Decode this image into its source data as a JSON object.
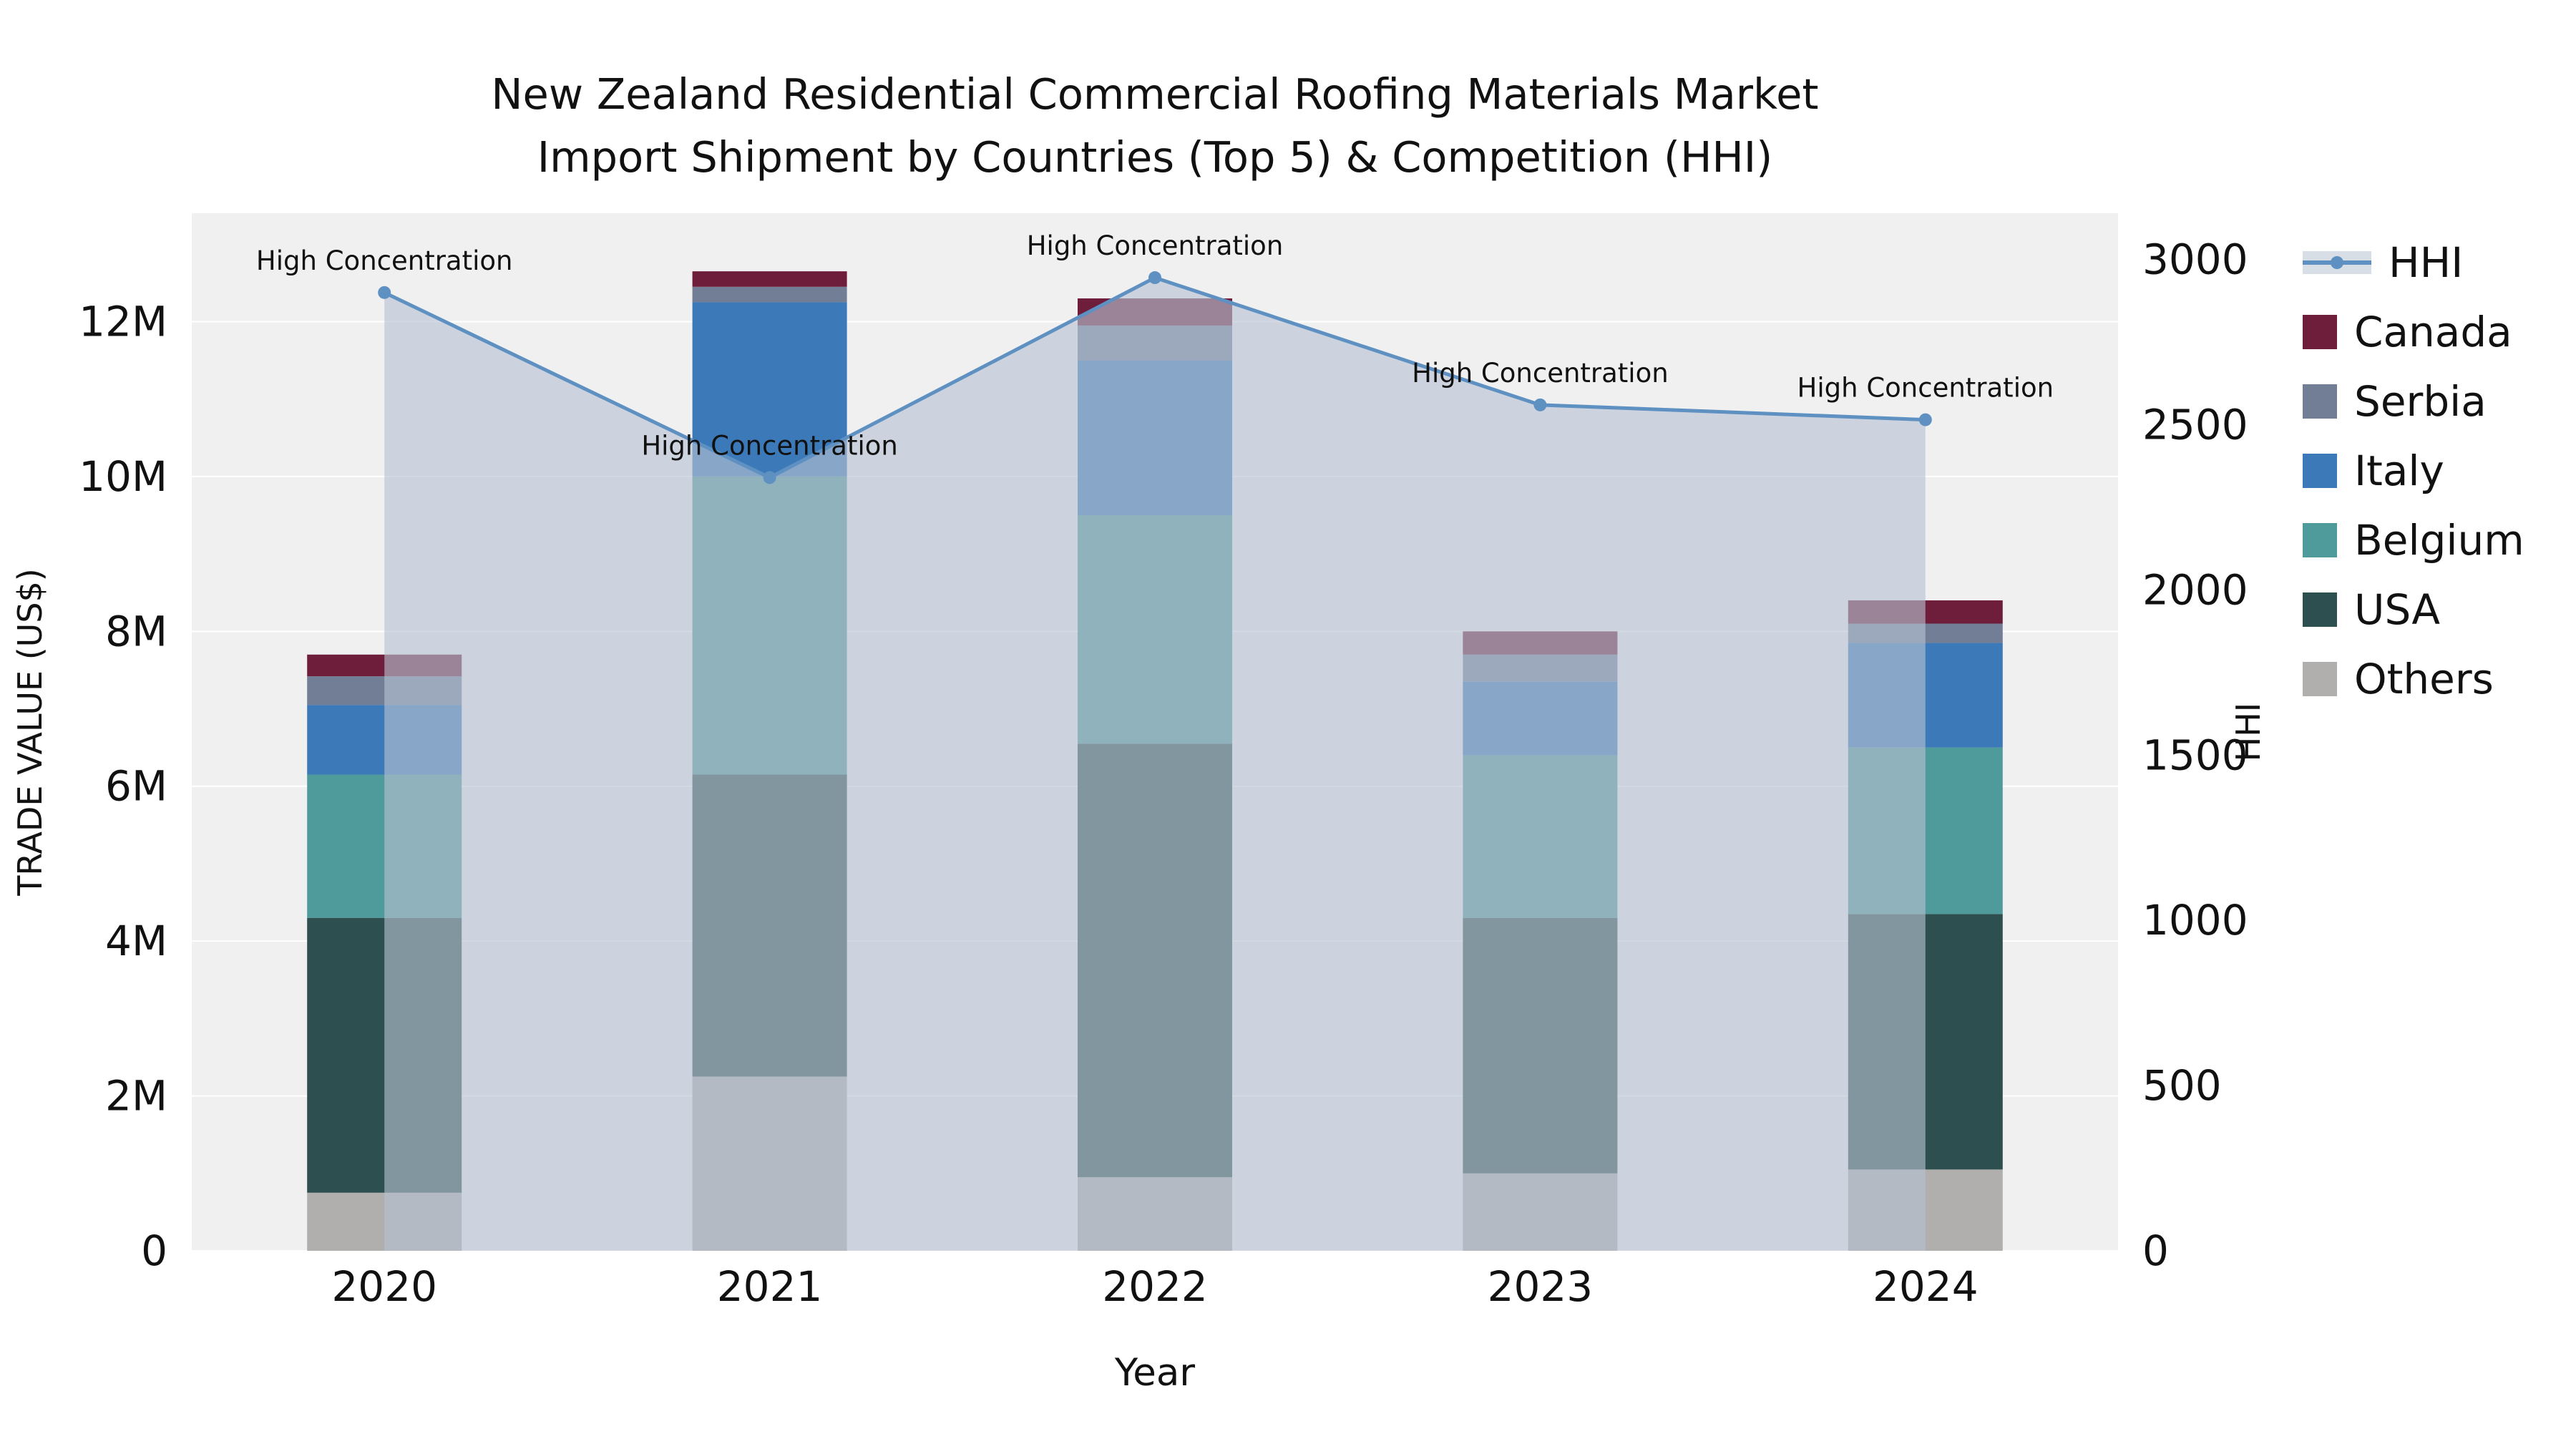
{
  "title": {
    "line1": "New Zealand Residential Commercial Roofing Materials Market",
    "line2": "Import Shipment by Countries (Top 5) & Competition (HHI)"
  },
  "chart_data": {
    "type": "bar",
    "subtype": "stacked bars (import trade value by country) + HHI line with shaded area, dual y-axis",
    "categories": [
      "2020",
      "2021",
      "2022",
      "2023",
      "2024"
    ],
    "xlabel": "Year",
    "left_axis": {
      "label": "TRADE VALUE (US$)",
      "max": 13400000,
      "ticks": [
        {
          "v": 0,
          "t": "0"
        },
        {
          "v": 2000000,
          "t": "2M"
        },
        {
          "v": 4000000,
          "t": "4M"
        },
        {
          "v": 6000000,
          "t": "6M"
        },
        {
          "v": 8000000,
          "t": "8M"
        },
        {
          "v": 10000000,
          "t": "10M"
        },
        {
          "v": 12000000,
          "t": "12M"
        }
      ]
    },
    "right_axis": {
      "label": "HHI",
      "max": 3140,
      "ticks": [
        {
          "v": 0,
          "t": "0"
        },
        {
          "v": 500,
          "t": "500"
        },
        {
          "v": 1000,
          "t": "1000"
        },
        {
          "v": 1500,
          "t": "1500"
        },
        {
          "v": 2000,
          "t": "2000"
        },
        {
          "v": 2500,
          "t": "2500"
        },
        {
          "v": 3000,
          "t": "3000"
        }
      ]
    },
    "series": [
      {
        "name": "Others",
        "color": "#b0afae",
        "values": [
          750000,
          2250000,
          950000,
          1000000,
          1050000
        ]
      },
      {
        "name": "USA",
        "color": "#2d4f4f",
        "values": [
          3550000,
          3900000,
          5600000,
          3300000,
          3300000
        ]
      },
      {
        "name": "Belgium",
        "color": "#4f9a9b",
        "values": [
          1850000,
          3850000,
          2950000,
          2100000,
          2150000
        ]
      },
      {
        "name": "Italy",
        "color": "#3c79b8",
        "values": [
          900000,
          2250000,
          2000000,
          950000,
          1350000
        ]
      },
      {
        "name": "Serbia",
        "color": "#717e96",
        "values": [
          370000,
          200000,
          450000,
          350000,
          250000
        ]
      },
      {
        "name": "Canada",
        "color": "#6e1e3a",
        "values": [
          280000,
          200000,
          350000,
          300000,
          300000
        ]
      }
    ],
    "line_series": {
      "name": "HHI",
      "color": "#5e91c2",
      "area_fill": "#b7c2d2",
      "area_opacity": 0.62,
      "values": [
        2900,
        2340,
        2945,
        2560,
        2515
      ]
    },
    "point_annotations": [
      "High Concentration",
      "High Concentration",
      "High Concentration",
      "High Concentration",
      "High Concentration"
    ],
    "legend": [
      {
        "name": "HHI",
        "kind": "line",
        "color": "#5e91c2"
      },
      {
        "name": "Canada",
        "kind": "box",
        "color": "#6e1e3a"
      },
      {
        "name": "Serbia",
        "kind": "box",
        "color": "#717e96"
      },
      {
        "name": "Italy",
        "kind": "box",
        "color": "#3c79b8"
      },
      {
        "name": "Belgium",
        "kind": "box",
        "color": "#4f9a9b"
      },
      {
        "name": "USA",
        "kind": "box",
        "color": "#2d4f4f"
      },
      {
        "name": "Others",
        "kind": "box",
        "color": "#b0afae"
      }
    ],
    "plot_background": "#f0f0f1",
    "grid": true
  }
}
